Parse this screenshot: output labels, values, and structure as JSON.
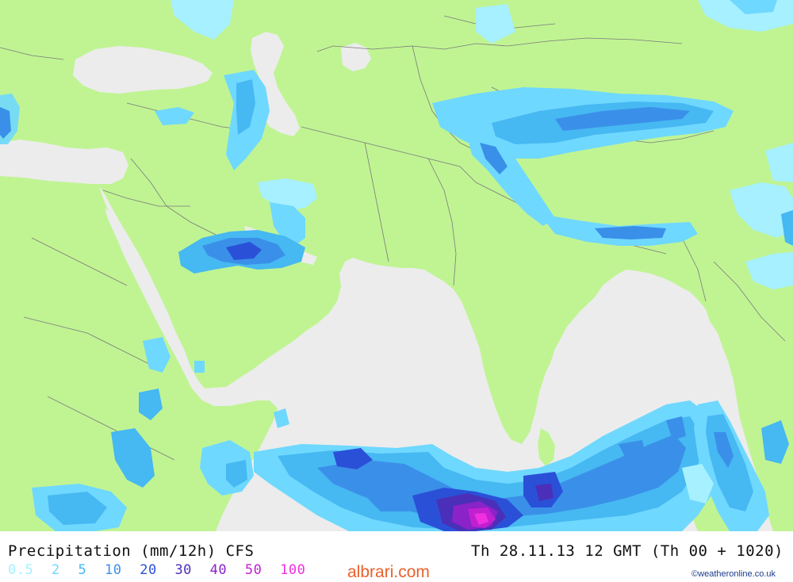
{
  "map": {
    "colors": {
      "sea": "#ececec",
      "land": "#c0f493",
      "border": "#7a7a7a"
    }
  },
  "footer": {
    "title": "Precipitation (mm/12h) CFS",
    "timestamp": "Th 28.11.13 12 GMT (Th 00 + 1020)",
    "watermark": "albrari.com",
    "credit": "©weatheronline.co.uk"
  },
  "legend": {
    "items": [
      {
        "label": "0.5",
        "color": "#a6f0ff"
      },
      {
        "label": "2",
        "color": "#6fd8ff"
      },
      {
        "label": "5",
        "color": "#46b8f2"
      },
      {
        "label": "10",
        "color": "#3a90e8"
      },
      {
        "label": "20",
        "color": "#2a50d8"
      },
      {
        "label": "30",
        "color": "#4b2fb8"
      },
      {
        "label": "40",
        "color": "#8a23c8"
      },
      {
        "label": "50",
        "color": "#c020d0"
      },
      {
        "label": "100",
        "color": "#f030e0"
      }
    ]
  }
}
